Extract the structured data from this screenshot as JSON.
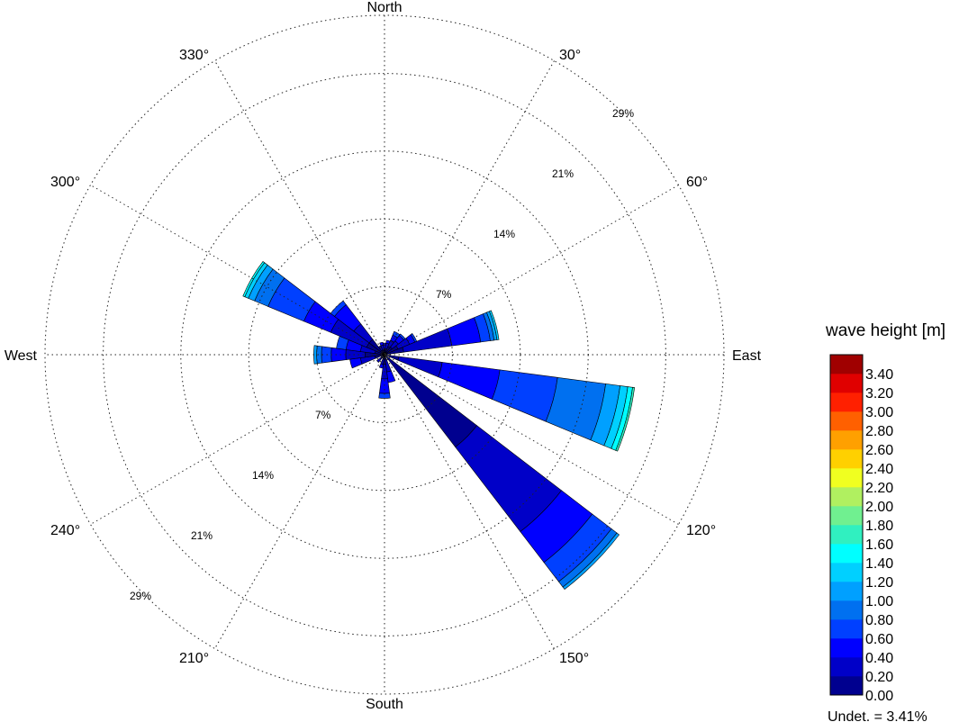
{
  "chart_data": {
    "type": "wind-rose",
    "direction_labels": {
      "north": "North",
      "east": "East",
      "south": "South",
      "west": "West",
      "deg30": "30°",
      "deg60": "60°",
      "deg120": "120°",
      "deg150": "150°",
      "deg210": "210°",
      "deg240": "240°",
      "deg300": "300°",
      "deg330": "330°"
    },
    "ring_labels": {
      "r7": "7%",
      "r14": "14%",
      "r21": "21%",
      "r29": "29%"
    },
    "ring_values": [
      7,
      14,
      21,
      29
    ],
    "max_radius_pct": 35,
    "legend_title": "wave height [m]",
    "bins": [
      "0.00",
      "0.20",
      "0.40",
      "0.60",
      "0.80",
      "1.00",
      "1.20",
      "1.40",
      "1.60",
      "1.80",
      "2.00",
      "2.20",
      "2.40",
      "2.60",
      "2.80",
      "3.00",
      "3.20",
      "3.40"
    ],
    "bin_colors": [
      "#00008f",
      "#0000c8",
      "#0000ff",
      "#0040ff",
      "#0070f0",
      "#00a0ff",
      "#00d0ff",
      "#00ffff",
      "#30f0c0",
      "#70f090",
      "#b0f060",
      "#f0ff20",
      "#ffd000",
      "#ffa000",
      "#ff6000",
      "#ff2000",
      "#e00000",
      "#a00000"
    ],
    "undetermined_label": "Undet. = 3.41%",
    "sectors": [
      {
        "direction": 0,
        "cumulative": [
          0.5,
          1.0,
          1.2
        ]
      },
      {
        "direction": 15,
        "cumulative": [
          0.6,
          1.2,
          1.5
        ]
      },
      {
        "direction": 30,
        "cumulative": [
          0.9,
          1.6,
          2.2,
          2.6
        ]
      },
      {
        "direction": 45,
        "cumulative": [
          1.0,
          1.8,
          2.5,
          2.7
        ]
      },
      {
        "direction": 60,
        "cumulative": [
          1.5,
          2.8,
          3.4,
          3.6
        ]
      },
      {
        "direction": 75,
        "cumulative": [
          2.0,
          7.0,
          10.0,
          11.0,
          11.4,
          11.7,
          11.9
        ]
      },
      {
        "direction": 105,
        "cumulative": [
          1.5,
          6.0,
          12.0,
          18.0,
          23.0,
          24.5,
          25.3,
          25.8,
          26.0
        ]
      },
      {
        "direction": 135,
        "cumulative": [
          12.0,
          23.0,
          27.0,
          29.5,
          30.2,
          30.5
        ]
      },
      {
        "direction": 165,
        "cumulative": [
          0.5,
          1.8,
          2.9
        ]
      },
      {
        "direction": 180,
        "cumulative": [
          1.0,
          2.5,
          4.0,
          4.5
        ]
      },
      {
        "direction": 195,
        "cumulative": [
          0.5,
          1.0,
          1.4
        ]
      },
      {
        "direction": 225,
        "cumulative": [
          0.5,
          1.0
        ]
      },
      {
        "direction": 255,
        "cumulative": [
          1.0,
          2.5,
          3.6
        ]
      },
      {
        "direction": 270,
        "cumulative": [
          2.0,
          4.0,
          5.5,
          6.5,
          7.0,
          7.3
        ]
      },
      {
        "direction": 285,
        "cumulative": [
          1.0,
          2.5,
          4.0,
          5.0
        ]
      },
      {
        "direction": 300,
        "cumulative": [
          2.0,
          6.0,
          9.0,
          13.0,
          14.5,
          15.2,
          15.6,
          15.8
        ]
      },
      {
        "direction": 315,
        "cumulative": [
          2.0,
          4.0,
          6.5,
          7.0
        ]
      },
      {
        "direction": 330,
        "cumulative": [
          0.5,
          1.0
        ]
      },
      {
        "direction": 345,
        "cumulative": [
          0.5,
          1.0,
          1.3
        ]
      }
    ]
  }
}
